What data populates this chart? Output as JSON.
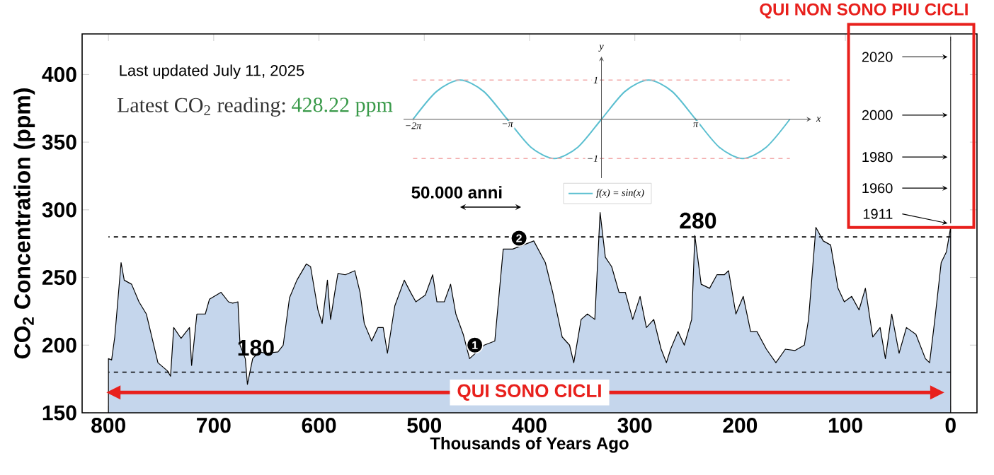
{
  "chart_data": [
    {
      "type": "area",
      "ylabel": "CO$_{2}$ Concentration (ppm)",
      "xlabel": "Thousands of Years Ago",
      "xlim": [
        825,
        -25
      ],
      "ylim": [
        150,
        430
      ],
      "xticks": [
        800,
        700,
        600,
        500,
        400,
        300,
        200,
        100,
        0
      ],
      "yticks": [
        150,
        200,
        250,
        300,
        350,
        400
      ],
      "ref_lines": [
        {
          "axis": "y",
          "value": 280,
          "label": "280",
          "line_style": "dashed",
          "color": "#000000"
        },
        {
          "axis": "y",
          "value": 180,
          "label": "180",
          "line_style": "dashed",
          "color": "#000000"
        }
      ],
      "annotations": [
        "Last updated July 11, 2025",
        "Latest CO$_{2}$ reading:",
        "428.22 ppm",
        "50.000 anni",
        "QUI SONO CICLI",
        {
          "text": "QUI NON SONO PIU CICLI",
          "x": 0,
          "y": 290
        },
        "2020",
        "2000",
        "1980",
        "1960",
        "1911",
        {
          "text": "1",
          "x": 452,
          "y": 200
        },
        {
          "text": "2",
          "x": 410,
          "y": 279
        }
      ],
      "series": [
        {
          "color": "#c5d6ec",
          "x": [
            800,
            797,
            794,
            788,
            785,
            778,
            771,
            764,
            760,
            753,
            744,
            741,
            738,
            731,
            723,
            721,
            716,
            708,
            704,
            693,
            686,
            682,
            677,
            675,
            670,
            668,
            663,
            657,
            650,
            639,
            634,
            628,
            621,
            612,
            608,
            601,
            597,
            592,
            589,
            585,
            582,
            575,
            566,
            561,
            557,
            550,
            544,
            539,
            535,
            528,
            519,
            513,
            508,
            499,
            492,
            488,
            481,
            475,
            470,
            463,
            457,
            443,
            433,
            425,
            416,
            407,
            396,
            385,
            378,
            369,
            362,
            358,
            351,
            345,
            338,
            333,
            328,
            322,
            315,
            309,
            302,
            295,
            289,
            282,
            275,
            270,
            266,
            259,
            253,
            246,
            243,
            237,
            229,
            222,
            215,
            211,
            204,
            197,
            190,
            184,
            175,
            166,
            157,
            148,
            139,
            135,
            128,
            121,
            114,
            107,
            101,
            94,
            87,
            81,
            74,
            67,
            62,
            56,
            49,
            42,
            33,
            24,
            20,
            15,
            9,
            4,
            0
          ],
          "values": [
            190,
            189,
            206,
            261,
            248,
            245,
            232,
            223,
            210,
            187,
            181,
            177,
            213,
            205,
            213,
            185,
            223,
            223,
            234,
            239,
            232,
            231,
            232,
            200,
            190,
            171,
            190,
            195,
            194,
            195,
            200,
            235,
            248,
            260,
            258,
            226,
            216,
            248,
            219,
            239,
            253,
            252,
            255,
            239,
            216,
            203,
            213,
            213,
            194,
            229,
            248,
            239,
            232,
            237,
            252,
            232,
            232,
            245,
            223,
            208,
            190,
            200,
            203,
            271,
            271,
            null,
            277,
            261,
            239,
            206,
            200,
            187,
            219,
            223,
            219,
            298,
            265,
            258,
            239,
            239,
            219,
            236,
            213,
            219,
            197,
            187,
            197,
            210,
            200,
            219,
            281,
            245,
            242,
            252,
            252,
            255,
            223,
            236,
            210,
            210,
            197,
            187,
            197,
            196,
            200,
            219,
            287,
            277,
            274,
            242,
            232,
            236,
            226,
            242,
            206,
            213,
            190,
            223,
            194,
            213,
            208,
            190,
            187,
            219,
            261,
            269,
            287
          ]
        }
      ]
    },
    {
      "type": "line",
      "xlabel": "x",
      "ylabel": "y",
      "legend": "bottom",
      "xlim": [
        -6.6,
        7.0
      ],
      "ylim": [
        -1.5,
        1.6
      ],
      "xticks": [
        {
          "value": -6.283,
          "label": "−2π"
        },
        {
          "value": -3.142,
          "label": "−π"
        },
        {
          "value": 3.142,
          "label": "π"
        }
      ],
      "yticks": [
        1,
        {
          "value": -1,
          "label": "−1"
        }
      ],
      "ref_lines": [
        {
          "axis": "y",
          "value": 1,
          "line_style": "dashed",
          "color": "#f2a9a9"
        },
        {
          "axis": "y",
          "value": -1,
          "line_style": "dashed",
          "color": "#f2a9a9"
        }
      ],
      "series": [
        {
          "name": "f(x) = sin(x)",
          "color": "#5bbfd0",
          "x": [
            -6.283,
            -5.498,
            -4.712,
            -3.927,
            -3.142,
            -2.356,
            -1.571,
            -0.785,
            0,
            0.785,
            1.571,
            2.356,
            3.142,
            3.927,
            4.712,
            5.498,
            6.283
          ],
          "values": [
            0,
            0.71,
            1,
            0.71,
            0,
            -0.71,
            -1,
            -0.71,
            0,
            0.71,
            1,
            0.71,
            0,
            -0.71,
            -1,
            -0.71,
            0
          ]
        }
      ]
    }
  ]
}
